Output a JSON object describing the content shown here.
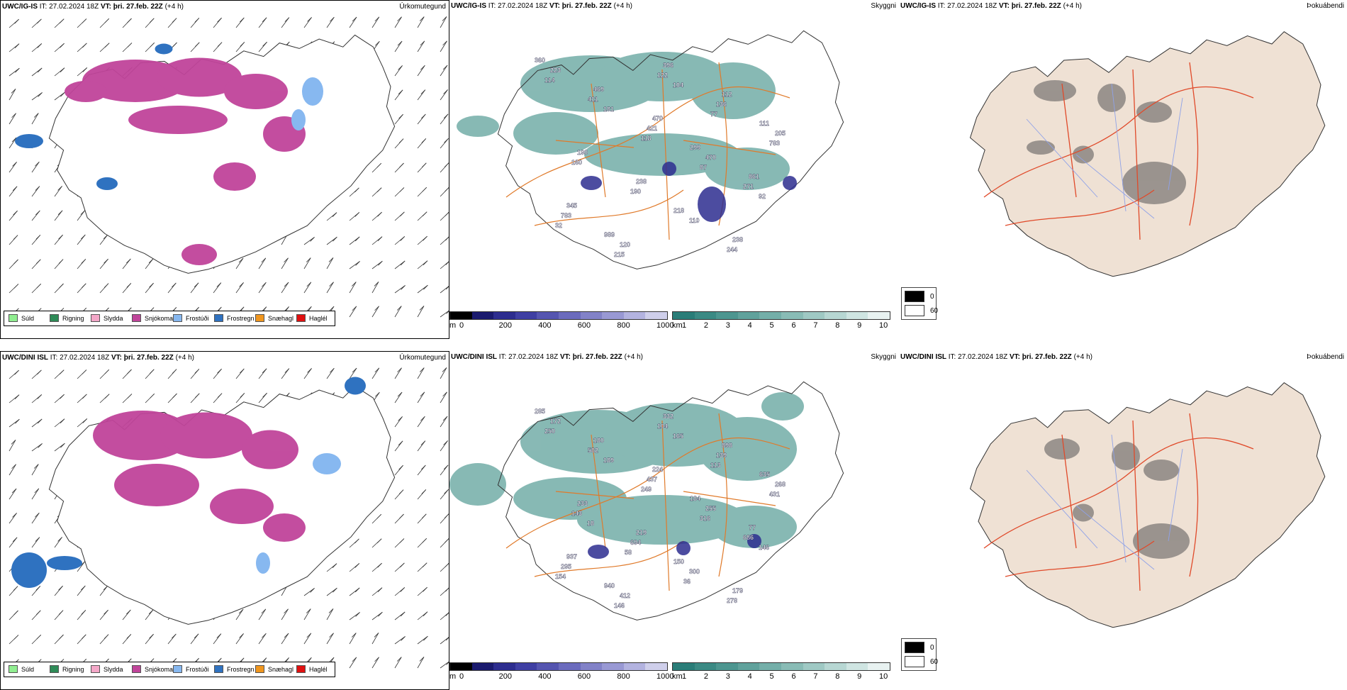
{
  "rows": [
    {
      "model": "UWC/IG-IS",
      "it_label": "IT:",
      "it": "27.02.2024 18Z",
      "vt_label": "VT:",
      "vt": "þri. 27.feb. 22Z",
      "lead": "(+4 h)",
      "cloud_labels": [
        "360",
        "469",
        "470",
        "299",
        "861",
        "345",
        "989",
        "396",
        "112",
        "111",
        "190",
        "238",
        "218",
        "238",
        "223",
        "411",
        "421",
        "470",
        "271",
        "783",
        "120",
        "122",
        "136",
        "205",
        "160",
        "190",
        "110",
        "244",
        "114",
        "181",
        "118",
        "87",
        "92",
        "32",
        "215",
        "104",
        "77",
        "783"
      ]
    },
    {
      "model": "UWC/DINI ISL",
      "it_label": "IT:",
      "it": "27.02.2024 18Z",
      "vt_label": "VT:",
      "vt": "þri. 27.feb. 22Z",
      "lead": "(+4 h)",
      "cloud_labels": [
        "285",
        "180",
        "224",
        "184",
        "77",
        "937",
        "940",
        "332",
        "898",
        "635",
        "233",
        "219",
        "150",
        "179",
        "172",
        "582",
        "437",
        "255",
        "686",
        "295",
        "412",
        "104",
        "139",
        "268",
        "143",
        "694",
        "300",
        "278",
        "250",
        "189",
        "249",
        "316",
        "146",
        "154",
        "146",
        "165",
        "113",
        "431",
        "18",
        "58",
        "36"
      ]
    }
  ],
  "panel_titles": {
    "precip": "Úrkomutegund",
    "cloud": "Skyggni",
    "fog": "Þokuábendi"
  },
  "precip_legend": [
    {
      "label": "Súld",
      "color": "#90ee90"
    },
    {
      "label": "Rigning",
      "color": "#2e8b57"
    },
    {
      "label": "Slydda",
      "color": "#f4a7c8"
    },
    {
      "label": "Snjókoma",
      "color": "#c0449a"
    },
    {
      "label": "Frostúði",
      "color": "#87b8f0"
    },
    {
      "label": "Frostregn",
      "color": "#2f72c0"
    },
    {
      "label": "Snæhagl",
      "color": "#f0961e"
    },
    {
      "label": "Haglél",
      "color": "#e01010"
    }
  ],
  "cloud_base_bar": {
    "unit": "m",
    "ticks": [
      "0",
      "200",
      "400",
      "600",
      "800",
      "1000"
    ],
    "colors": [
      "#000000",
      "#1a1a6e",
      "#2d2d8f",
      "#3f3fa3",
      "#5555b0",
      "#6b6bbd",
      "#8282c8",
      "#9999d4",
      "#b3b3e0",
      "#cfcfeb"
    ]
  },
  "visibility_bar": {
    "unit": "km",
    "ticks": [
      "1",
      "2",
      "3",
      "4",
      "5",
      "6",
      "7",
      "8",
      "9",
      "10"
    ],
    "colors": [
      "#2a7d78",
      "#3b8a84",
      "#4d9690",
      "#60a29c",
      "#74afa9",
      "#89bcb6",
      "#9fc9c4",
      "#b7d7d3",
      "#cfe5e2",
      "#e8f2f1"
    ]
  },
  "fog_legend": {
    "items": [
      {
        "value": "0",
        "color": "#000000"
      },
      {
        "value": "60",
        "color": "#ffffff"
      }
    ]
  }
}
